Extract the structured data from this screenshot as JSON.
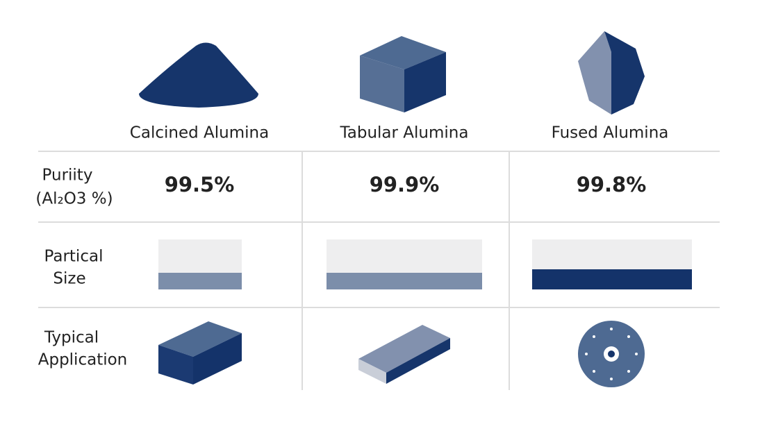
{
  "columns": [
    "Calcined Alumina",
    "Tabular Alumina",
    "Fused Alumina"
  ],
  "rows": [
    {
      "label": [
        "Puriity",
        "(Al₂O3 %)"
      ],
      "values": [
        "99.5%",
        "99.9%",
        "99.8%"
      ]
    },
    {
      "label": [
        "Partical",
        "Size"
      ]
    },
    {
      "label": [
        "Typical",
        "Application"
      ]
    }
  ]
}
